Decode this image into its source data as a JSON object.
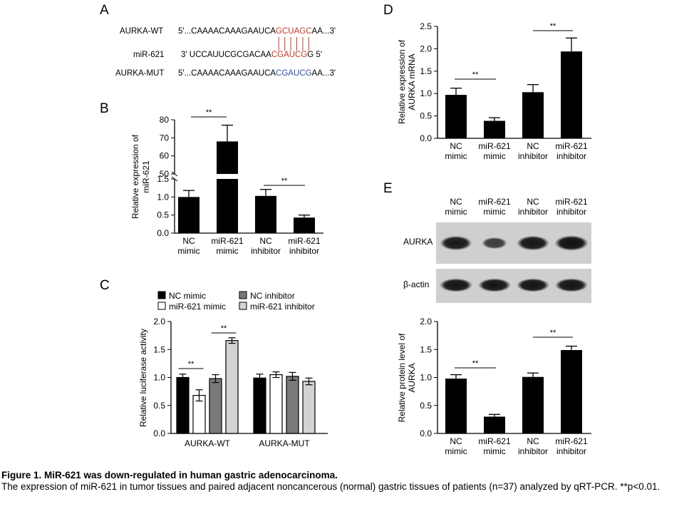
{
  "panels": {
    "a": {
      "letter": "A",
      "rows": [
        {
          "label": "AURKA-WT",
          "prefix": "5'...CAAAACAAAGAAUCA",
          "highlight": "GCUAGC",
          "suffix": "AA...3'",
          "color": "#c0392b"
        },
        {
          "label": "miR-621",
          "prefix": "3'   UCCAUUCGCGACAA",
          "highlight": "CGAUCG",
          "suffix": "G    5'",
          "color": "#c0392b"
        },
        {
          "label": "AURKA-MUT",
          "prefix": "5'...CAAAACAAAGAAUCA",
          "highlight": "CGAUCG",
          "suffix": "AA...3'",
          "color": "#2e4fa8"
        }
      ]
    },
    "b": {
      "letter": "B"
    },
    "c": {
      "letter": "C"
    },
    "d": {
      "letter": "D"
    },
    "e": {
      "letter": "E",
      "blot_labels": [
        "AURKA",
        "β-actin"
      ],
      "lane_labels": [
        [
          "NC",
          "mimic"
        ],
        [
          "miR-621",
          "mimic"
        ],
        [
          "NC",
          "inhibitor"
        ],
        [
          "miR-621",
          "inhibitor"
        ]
      ],
      "band_intensity": {
        "AURKA": [
          0.85,
          0.45,
          0.88,
          0.95
        ],
        "beta_actin": [
          0.9,
          0.9,
          0.9,
          0.9
        ]
      }
    }
  },
  "chart_data": [
    {
      "panel": "B",
      "type": "bar",
      "categories": [
        [
          "NC",
          "mimic"
        ],
        [
          "miR-621",
          "mimic"
        ],
        [
          "NC",
          "inhibitor"
        ],
        [
          "miR-621",
          "inhibitor"
        ]
      ],
      "values": [
        1.0,
        68,
        1.03,
        0.43
      ],
      "errors": [
        0.18,
        9,
        0.18,
        0.07
      ],
      "ylabel": "Relative expression of miR-621",
      "ylim": [
        0,
        80
      ],
      "axis_break": [
        1.5,
        50
      ],
      "yticks_lower": [
        "0.0",
        "0.5",
        "1.0",
        "1.5"
      ],
      "yticks_upper": [
        "50",
        "60",
        "70",
        "80"
      ],
      "bar_color": "#000000",
      "significance": [
        {
          "from": 0,
          "to": 1,
          "label": "**"
        },
        {
          "from": 2,
          "to": 3,
          "label": "**"
        }
      ]
    },
    {
      "panel": "C",
      "type": "bar",
      "categories": [
        "AURKA-WT",
        "AURKA-MUT"
      ],
      "series": [
        {
          "name": "NC mimic",
          "values": [
            1.0,
            0.99
          ],
          "errors": [
            0.06,
            0.07
          ],
          "color": "#000000"
        },
        {
          "name": "miR-621 mimic",
          "values": [
            0.68,
            1.05
          ],
          "errors": [
            0.1,
            0.05
          ],
          "color": "#ffffff"
        },
        {
          "name": "NC inhibitor",
          "values": [
            0.98,
            1.02
          ],
          "errors": [
            0.07,
            0.07
          ],
          "color": "#7a7a7a"
        },
        {
          "name": "miR-621 inhibitor",
          "values": [
            1.66,
            0.93
          ],
          "errors": [
            0.05,
            0.06
          ],
          "color": "#d3d3d3"
        }
      ],
      "ylabel": "Relative luciferase activity",
      "ylim": [
        0,
        2.0
      ],
      "yticks": [
        "0.0",
        "0.5",
        "1.0",
        "1.5",
        "2.0"
      ],
      "legend": "top",
      "significance": [
        {
          "group": 0,
          "from": 0,
          "to": 1,
          "label": "**"
        },
        {
          "group": 0,
          "from": 2,
          "to": 3,
          "label": "**"
        }
      ]
    },
    {
      "panel": "D",
      "type": "bar",
      "categories": [
        [
          "NC",
          "mimic"
        ],
        [
          "miR-621",
          "mimic"
        ],
        [
          "NC",
          "inhibitor"
        ],
        [
          "miR-621",
          "inhibitor"
        ]
      ],
      "values": [
        0.97,
        0.39,
        1.03,
        1.94
      ],
      "errors": [
        0.15,
        0.07,
        0.17,
        0.3
      ],
      "ylabel": "Relative expression of AURKA mRNA",
      "ylim": [
        0,
        2.5
      ],
      "yticks": [
        "0.0",
        "0.5",
        "1.0",
        "1.5",
        "2.0",
        "2.5"
      ],
      "bar_color": "#000000",
      "significance": [
        {
          "from": 0,
          "to": 1,
          "label": "**"
        },
        {
          "from": 2,
          "to": 3,
          "label": "**"
        }
      ]
    },
    {
      "panel": "E",
      "type": "bar",
      "categories": [
        [
          "NC",
          "mimic"
        ],
        [
          "miR-621",
          "mimic"
        ],
        [
          "NC",
          "inhibitor"
        ],
        [
          "miR-621",
          "inhibitor"
        ]
      ],
      "values": [
        0.98,
        0.3,
        1.01,
        1.49
      ],
      "errors": [
        0.07,
        0.04,
        0.07,
        0.07
      ],
      "ylabel": "Relative protein level of AURKA",
      "ylim": [
        0,
        2.0
      ],
      "yticks": [
        "0.0",
        "0.5",
        "1.0",
        "1.5",
        "2.0"
      ],
      "bar_color": "#000000",
      "significance": [
        {
          "from": 0,
          "to": 1,
          "label": "**"
        },
        {
          "from": 2,
          "to": 3,
          "label": "**"
        }
      ]
    }
  ],
  "caption": {
    "title": "Figure 1. MiR-621 was down-regulated in human gastric adenocarcinoma.",
    "body": "The expression of miR-621 in tumor tissues and paired adjacent noncancerous (normal) gastric tissues of patients (n=37) analyzed by qRT-PCR. **p<0.01."
  }
}
